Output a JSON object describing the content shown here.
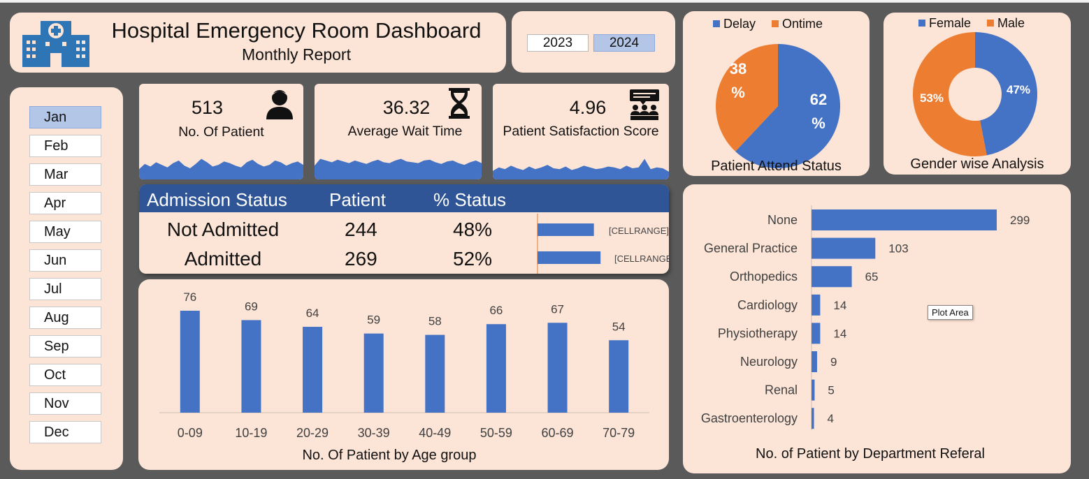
{
  "header": {
    "title": "Hospital Emergency Room Dashboard",
    "subtitle": "Monthly Report",
    "logo_icon": "hospital-icon"
  },
  "years": {
    "items": [
      "2023",
      "2024"
    ],
    "selected": "2024"
  },
  "months": {
    "items": [
      "Jan",
      "Feb",
      "Mar",
      "Apr",
      "May",
      "Jun",
      "Jul",
      "Aug",
      "Sep",
      "Oct",
      "Nov",
      "Dec"
    ],
    "selected": "Jan"
  },
  "kpis": {
    "patients": {
      "value": "513",
      "label": "No. Of Patient",
      "icon": "patient-icon"
    },
    "wait": {
      "value": "36.32",
      "label": "Average Wait Time",
      "icon": "hourglass-icon"
    },
    "satisfaction": {
      "value": "4.96",
      "label": "Patient Satisfaction Score",
      "icon": "audience-feedback-icon"
    }
  },
  "admission": {
    "headers": [
      "Admission Status",
      "Patient",
      "% Status"
    ],
    "rows": [
      {
        "status": "Not Admitted",
        "patients": "244",
        "percent": "48%",
        "bar_label": "[CELLRANGE]"
      },
      {
        "status": "Admitted",
        "patients": "269",
        "percent": "52%",
        "bar_label": "[CELLRANGE]"
      }
    ]
  },
  "colors": {
    "blue": "#4472c4",
    "orange": "#ed7d31",
    "panel": "#fce4d6",
    "header_blue": "#2f5597",
    "background": "#5a5a5a"
  },
  "tooltip": {
    "plot_area": "Plot Area"
  },
  "chart_data": [
    {
      "id": "age",
      "type": "bar",
      "title": "No. Of Patient by Age group",
      "categories": [
        "0-09",
        "10-19",
        "20-29",
        "30-39",
        "40-49",
        "50-59",
        "60-69",
        "70-79"
      ],
      "values": [
        76,
        69,
        64,
        59,
        58,
        66,
        67,
        54
      ],
      "ylim": [
        0,
        80
      ],
      "grid": false,
      "data_labels": true
    },
    {
      "id": "department",
      "type": "bar",
      "orientation": "horizontal",
      "title": "No. of Patient by Department Referal",
      "categories": [
        "None",
        "General Practice",
        "Orthopedics",
        "Cardiology",
        "Physiotherapy",
        "Neurology",
        "Renal",
        "Gastroenterology"
      ],
      "values": [
        299,
        103,
        65,
        14,
        14,
        9,
        5,
        4
      ],
      "xlim": [
        0,
        340
      ],
      "grid": false,
      "data_labels": true
    },
    {
      "id": "attend",
      "type": "pie",
      "title": "Patient Attend Status",
      "legend_position": "top",
      "labels": [
        "Delay",
        "Ontime"
      ],
      "values": [
        62,
        38
      ],
      "slice_labels": [
        "62\n%",
        "38\n%"
      ]
    },
    {
      "id": "gender",
      "type": "pie",
      "donut": true,
      "title": "Gender wise Analysis",
      "legend_position": "top",
      "labels": [
        "Female",
        "Male"
      ],
      "values": [
        47,
        53
      ],
      "slice_labels": [
        "47%",
        "53%"
      ]
    },
    {
      "id": "admission_bars",
      "type": "bar",
      "orientation": "horizontal",
      "categories": [
        "Not Admitted",
        "Admitted"
      ],
      "values": [
        48,
        52
      ],
      "xlim": [
        0,
        55
      ]
    },
    {
      "id": "spark_patients",
      "type": "area",
      "values": [
        12,
        18,
        15,
        20,
        17,
        14,
        19,
        22,
        16,
        13,
        18,
        24,
        20,
        15,
        17,
        21,
        19,
        16,
        14,
        20,
        23,
        18,
        15,
        17,
        22,
        20,
        16,
        19,
        21,
        17
      ]
    },
    {
      "id": "spark_wait",
      "type": "area",
      "values": [
        16,
        24,
        22,
        20,
        23,
        21,
        19,
        22,
        20,
        18,
        21,
        23,
        20,
        19,
        22,
        24,
        21,
        20,
        19,
        22,
        23,
        20,
        18,
        21,
        22,
        19,
        17,
        20,
        22,
        19
      ]
    },
    {
      "id": "spark_satisfaction",
      "type": "area",
      "values": [
        10,
        14,
        12,
        16,
        13,
        11,
        15,
        12,
        14,
        17,
        13,
        12,
        15,
        11,
        13,
        16,
        14,
        12,
        13,
        15,
        14,
        12,
        16,
        13,
        14,
        24,
        12,
        14,
        13,
        9
      ]
    }
  ]
}
